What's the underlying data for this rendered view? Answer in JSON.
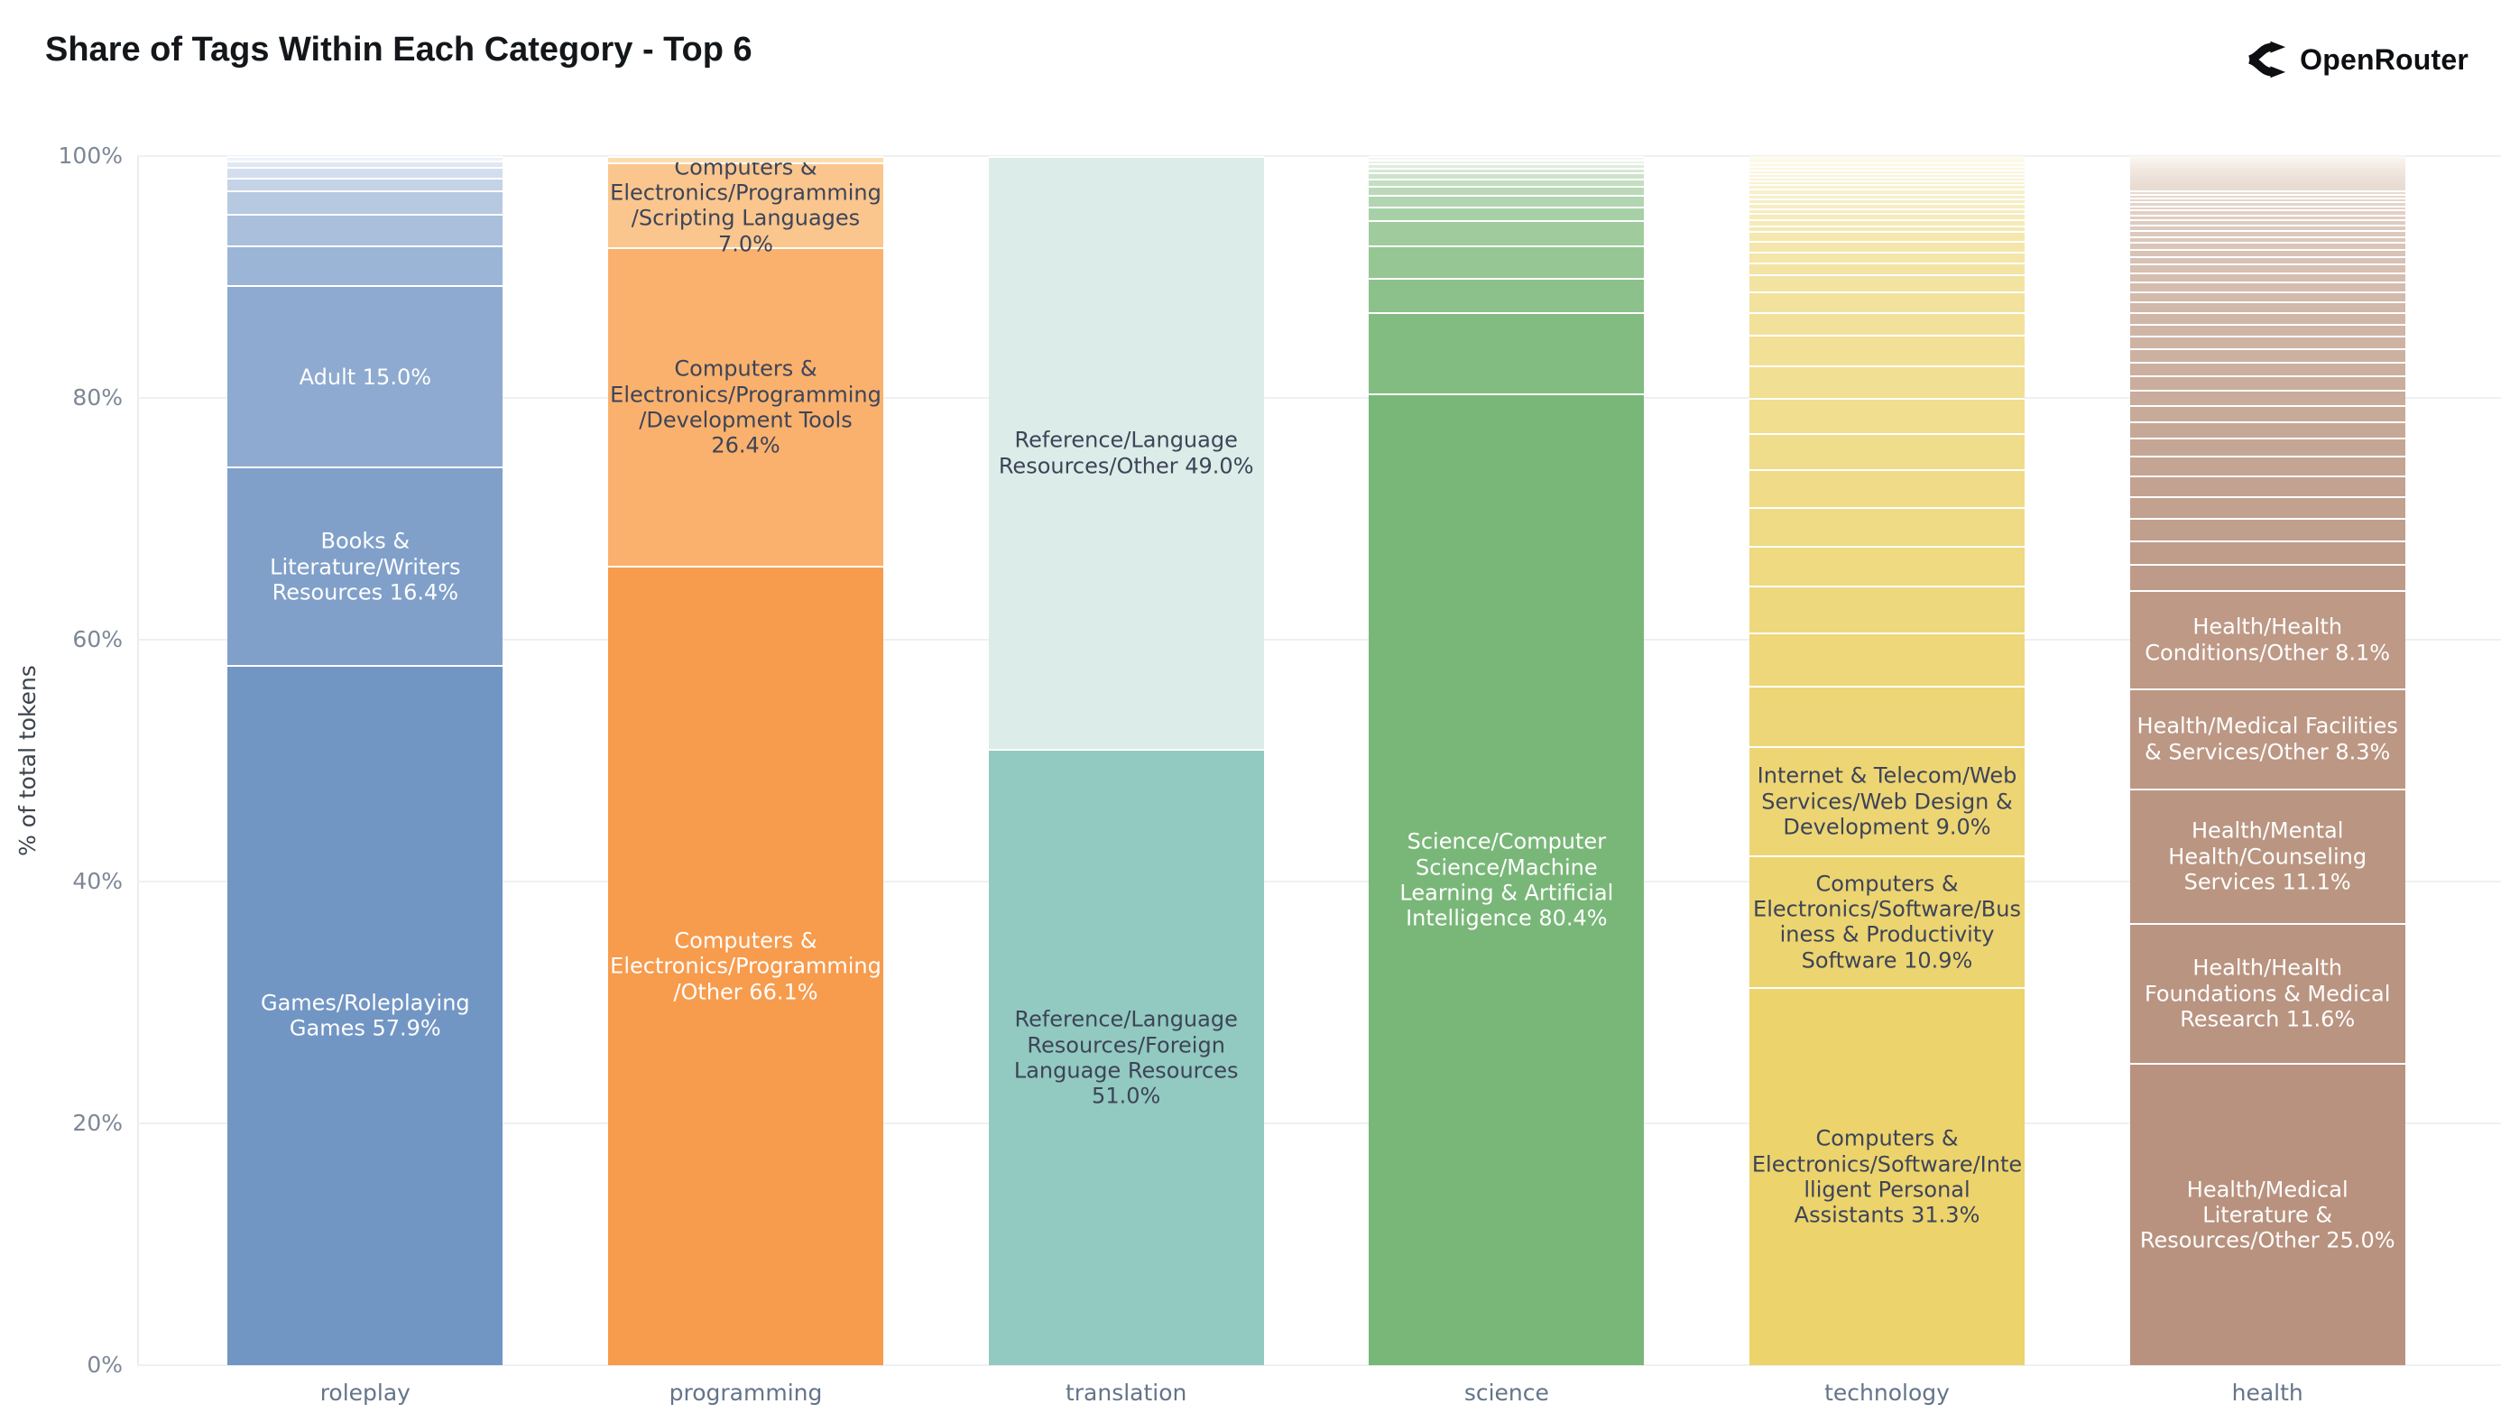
{
  "header": {
    "title": "Share of Tags Within Each Category - Top 6",
    "brand": "OpenRouter"
  },
  "y_axis": {
    "title": "% of total tokens",
    "ticks": [
      {
        "label": "100%",
        "value": 100
      },
      {
        "label": "80%",
        "value": 80
      },
      {
        "label": "60%",
        "value": 60
      },
      {
        "label": "40%",
        "value": 40
      },
      {
        "label": "20%",
        "value": 20
      },
      {
        "label": "0%",
        "value": 0
      }
    ]
  },
  "palette": {
    "title_text": "#14171a",
    "tick_text": "#7d8795",
    "category_text": "#64748a",
    "grid_line": "#eef0f2",
    "axis_line": "#e9ebee",
    "segment_divider": "#ffffff",
    "label_dark": "#3d4458",
    "label_light": "#ffffff"
  },
  "chart_data": {
    "type": "bar",
    "stacked": true,
    "orientation": "vertical",
    "title": "Share of Tags Within Each Category - Top 6",
    "xlabel": "",
    "ylabel": "% of total tokens",
    "ylim": [
      0,
      100
    ],
    "grid": true,
    "legend": "none",
    "categories": [
      "roleplay",
      "programming",
      "translation",
      "science",
      "technology",
      "health"
    ],
    "note": "Each bar stacks tag shares bottom-to-top in descending size; 'fillers' are the small unlabeled remainder segments (values estimated from pixel heights), listed bottom-to-top.",
    "bars": [
      {
        "category": "roleplay",
        "base_color": "#7296c4",
        "fade_color": "#eef2f9",
        "segments": [
          {
            "label": "Games/Roleplaying Games",
            "pct": 57.9,
            "text_color": "#ffffff"
          },
          {
            "label": "Books & Literature/Writers Resources",
            "pct": 16.4,
            "text_color": "#ffffff"
          },
          {
            "label": "Adult",
            "pct": 15.0,
            "text_color": "#ffffff"
          }
        ],
        "fillers": [
          3.3,
          2.6,
          2.0,
          1.0,
          0.9,
          0.5,
          0.4
        ]
      },
      {
        "category": "programming",
        "base_color": "#f79b4d",
        "fade_color": "#fcdcae",
        "segments": [
          {
            "label": "Computers & Electronics/Programming/Other",
            "pct": 66.1,
            "text_color": "#ffffff"
          },
          {
            "label": "Computers & Electronics/Programming/Development Tools",
            "pct": 26.4,
            "text_color": "#3d4458"
          },
          {
            "label": "Computers & Electronics/Programming/Scripting Languages",
            "pct": 7.0,
            "text_color": "#3d4458"
          }
        ],
        "fillers": [
          0.5
        ]
      },
      {
        "category": "translation",
        "base_color": "#92c9c0",
        "fade_color": "#dcece8",
        "segments": [
          {
            "label": "Reference/Language Resources/Foreign Language Resources",
            "pct": 51.0,
            "text_color": "#3d4458"
          },
          {
            "label": "Reference/Language Resources/Other",
            "pct": 49.0,
            "text_color": "#3d4458"
          }
        ],
        "fillers": []
      },
      {
        "category": "science",
        "base_color": "#79b778",
        "fade_color": "#f3f7f1",
        "segments": [
          {
            "label": "Science/Computer Science/Machine Learning & Artificial Intelligence",
            "pct": 80.4,
            "text_color": "#ffffff"
          }
        ],
        "fillers": [
          6.7,
          2.8,
          2.7,
          2.1,
          1.1,
          1.0,
          0.75,
          0.6,
          0.5,
          0.4,
          0.35,
          0.3,
          0.3
        ]
      },
      {
        "category": "technology",
        "base_color": "#ecd36c",
        "fade_color": "#fdfbee",
        "segments": [
          {
            "label": "Computers & Electronics/Software/Intelligent Personal Assistants",
            "pct": 31.3,
            "text_color": "#3d4458"
          },
          {
            "label": "Computers & Electronics/Software/Business & Productivity Software",
            "pct": 10.9,
            "text_color": "#3d4458"
          },
          {
            "label": "Internet & Telecom/Web Services/Web Design & Development",
            "pct": 9.0,
            "text_color": "#3d4458"
          }
        ],
        "fillers": [
          5.0,
          4.4,
          3.9,
          3.3,
          3.2,
          3.1,
          3.0,
          2.9,
          2.7,
          2.5,
          1.9,
          1.7,
          1.4,
          1.0,
          0.9,
          0.9,
          0.8,
          0.5,
          0.5,
          0.5,
          0.4,
          0.4,
          0.4,
          0.4,
          0.4,
          0.4,
          0.3,
          0.3,
          0.3,
          0.3,
          0.3,
          0.3,
          0.2,
          0.2,
          0.1
        ]
      },
      {
        "category": "health",
        "base_color": "#b8927e",
        "fade_color": "#fbf8f2",
        "segments": [
          {
            "label": "Health/Medical Literature & Resources/Other",
            "pct": 25.0,
            "text_color": "#ffffff"
          },
          {
            "label": "Health/Health Foundations & Medical Research",
            "pct": 11.6,
            "text_color": "#ffffff"
          },
          {
            "label": "Health/Mental Health/Counseling Services",
            "pct": 11.1,
            "text_color": "#ffffff"
          },
          {
            "label": "Health/Medical Facilities & Services/Other",
            "pct": 8.3,
            "text_color": "#ffffff"
          },
          {
            "label": "Health/Health Conditions/Other",
            "pct": 8.1,
            "text_color": "#ffffff"
          }
        ],
        "fillers": [
          2.2,
          1.9,
          1.9,
          1.8,
          1.7,
          1.6,
          1.5,
          1.4,
          1.3,
          1.25,
          1.2,
          1.15,
          1.1,
          1.05,
          1.0,
          0.95,
          0.9,
          0.85,
          0.8,
          0.75,
          0.7,
          0.65,
          0.6,
          0.55,
          0.5,
          0.5,
          0.45,
          0.45,
          0.4,
          0.4,
          0.35,
          0.35,
          0.3,
          0.3,
          0.3,
          0.25,
          0.25,
          0.25,
          0.2,
          0.2,
          0.2,
          0.2,
          0.15,
          0.15,
          0.15,
          0.15,
          0.15,
          0.1,
          0.1,
          0.1,
          0.1,
          0.1
        ]
      }
    ]
  }
}
